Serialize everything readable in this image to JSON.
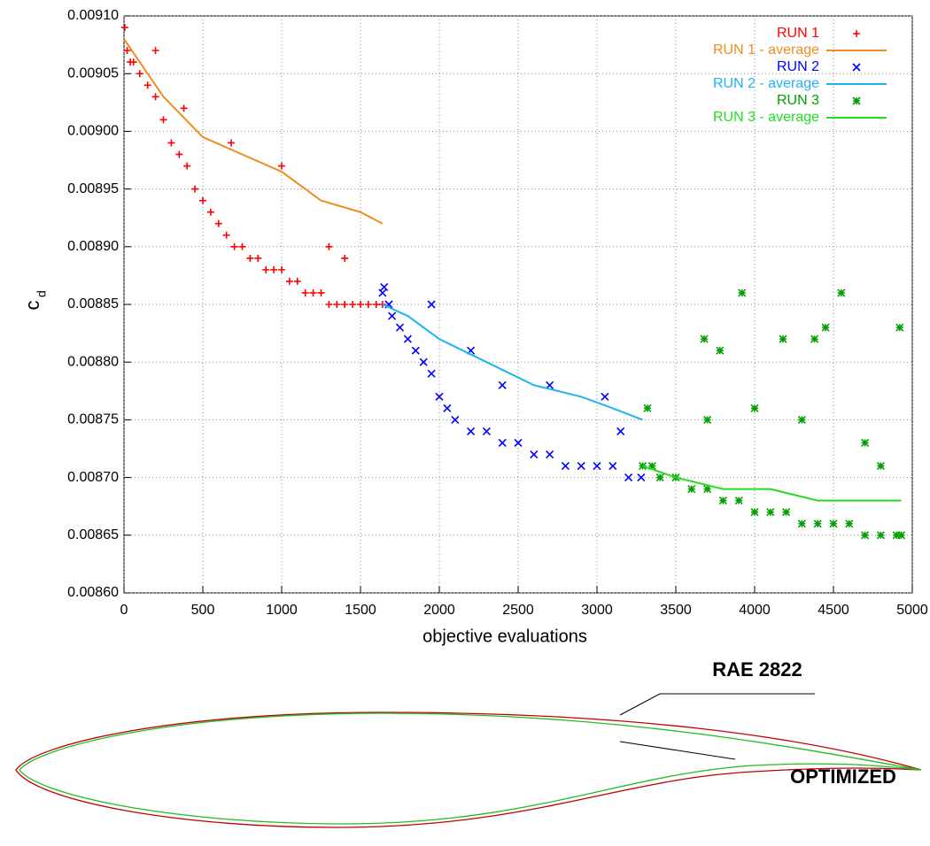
{
  "chart_data": {
    "type": "scatter",
    "xlabel": "objective evaluations",
    "ylabel": {
      "main": "c",
      "sub": "d"
    },
    "xlim": [
      0,
      5000
    ],
    "xticks": [
      0,
      500,
      1000,
      1500,
      2000,
      2500,
      3000,
      3500,
      4000,
      4500,
      5000
    ],
    "ylim": [
      0.0086,
      0.0091
    ],
    "yticks": [
      {
        "value": 0.0086,
        "label": "0.00860"
      },
      0.00865,
      {
        "value": 0.0087,
        "label": "0.00870"
      },
      0.00875,
      {
        "value": 0.0088,
        "label": "0.00880"
      },
      0.00885,
      {
        "value": 0.0089,
        "label": "0.00890"
      },
      0.00895,
      {
        "value": 0.009,
        "label": "0.00900"
      },
      0.00905,
      {
        "value": 0.0091,
        "label": "0.00910"
      }
    ],
    "grid": true,
    "legend": "top right",
    "series": [
      {
        "name": "RUN 1",
        "color": "#ff0000",
        "mode": "points",
        "marker": "+",
        "x": [
          5,
          20,
          40,
          60,
          100,
          150,
          200,
          250,
          300,
          350,
          400,
          450,
          500,
          550,
          600,
          650,
          700,
          750,
          800,
          850,
          900,
          950,
          1000,
          1050,
          1100,
          1150,
          1200,
          1250,
          1300,
          1350,
          1400,
          1450,
          1500,
          1550,
          1600,
          1640,
          200,
          380,
          680,
          1000,
          1300,
          1400
        ],
        "values": [
          0.00909,
          0.00907,
          0.00906,
          0.00906,
          0.00905,
          0.00904,
          0.00903,
          0.00901,
          0.00899,
          0.00898,
          0.00897,
          0.00895,
          0.00894,
          0.00893,
          0.00892,
          0.00891,
          0.0089,
          0.0089,
          0.00889,
          0.00889,
          0.00888,
          0.00888,
          0.00888,
          0.00887,
          0.00887,
          0.00886,
          0.00886,
          0.00886,
          0.00885,
          0.00885,
          0.00885,
          0.00885,
          0.00885,
          0.00885,
          0.00885,
          0.00885,
          0.00907,
          0.00902,
          0.00899,
          0.00897,
          0.0089,
          0.00889
        ]
      },
      {
        "name": "RUN 1 - average",
        "color": "#f08c1e",
        "mode": "line",
        "x": [
          0,
          100,
          250,
          500,
          750,
          1000,
          1250,
          1500,
          1640
        ],
        "values": [
          0.00908,
          0.00906,
          0.00903,
          0.008995,
          0.00898,
          0.008965,
          0.00894,
          0.00893,
          0.00892
        ]
      },
      {
        "name": "RUN 2",
        "color": "#0000ff",
        "mode": "points",
        "marker": "x",
        "x": [
          1640,
          1680,
          1700,
          1750,
          1800,
          1850,
          1900,
          1950,
          2000,
          2050,
          2100,
          2200,
          2300,
          2400,
          2500,
          2600,
          2700,
          2800,
          2900,
          3000,
          3100,
          3200,
          3280,
          1650,
          1950,
          2200,
          2400,
          2700,
          3050,
          3150
        ],
        "values": [
          0.00886,
          0.00885,
          0.00884,
          0.00883,
          0.00882,
          0.00881,
          0.0088,
          0.00879,
          0.00877,
          0.00876,
          0.00875,
          0.00874,
          0.00874,
          0.00873,
          0.00873,
          0.00872,
          0.00872,
          0.00871,
          0.00871,
          0.00871,
          0.00871,
          0.0087,
          0.0087,
          0.008865,
          0.00885,
          0.00881,
          0.00878,
          0.00878,
          0.00877,
          0.00874
        ]
      },
      {
        "name": "RUN 2 - average",
        "color": "#1eb4f0",
        "mode": "line",
        "x": [
          1640,
          1800,
          2000,
          2300,
          2600,
          2900,
          3100,
          3290
        ],
        "values": [
          0.00885,
          0.00884,
          0.00882,
          0.0088,
          0.00878,
          0.00877,
          0.00876,
          0.00875
        ]
      },
      {
        "name": "RUN 3",
        "color": "#00a000",
        "mode": "points",
        "marker": "*",
        "x": [
          3290,
          3350,
          3400,
          3500,
          3600,
          3700,
          3800,
          3900,
          4000,
          4100,
          4200,
          4300,
          4400,
          4500,
          4600,
          4700,
          4800,
          4900,
          4930,
          3680,
          3780,
          3920,
          4180,
          4380,
          4450,
          4550,
          4920,
          3320,
          4000,
          4300,
          4700,
          4800,
          3700
        ],
        "values": [
          0.00871,
          0.00871,
          0.0087,
          0.0087,
          0.00869,
          0.00869,
          0.00868,
          0.00868,
          0.00867,
          0.00867,
          0.00867,
          0.00866,
          0.00866,
          0.00866,
          0.00866,
          0.00865,
          0.00865,
          0.00865,
          0.00865,
          0.00882,
          0.00881,
          0.00886,
          0.00882,
          0.00882,
          0.00883,
          0.00886,
          0.00883,
          0.00876,
          0.00876,
          0.00875,
          0.00873,
          0.00871,
          0.00875
        ]
      },
      {
        "name": "RUN 3 - average",
        "color": "#22dd22",
        "mode": "line",
        "x": [
          3290,
          3500,
          3800,
          4100,
          4400,
          4700,
          4930
        ],
        "values": [
          0.00871,
          0.0087,
          0.00869,
          0.00869,
          0.00868,
          0.00868,
          0.00868
        ]
      }
    ]
  },
  "airfoil": {
    "labels": [
      "RAE 2822",
      "OPTIMIZED"
    ]
  }
}
